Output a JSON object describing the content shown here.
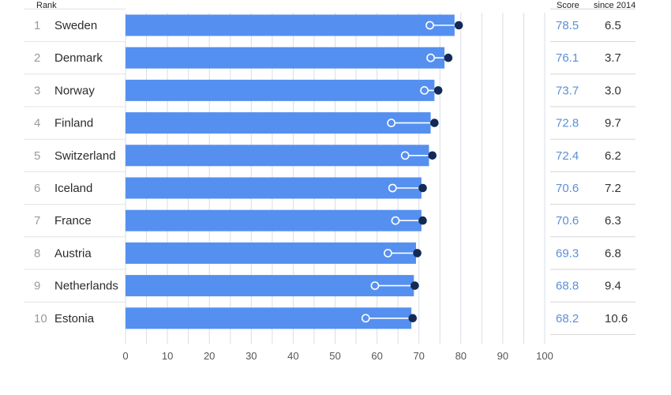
{
  "headers": {
    "rank": "Rank",
    "score": "Score",
    "since": "since 2014"
  },
  "colors": {
    "bar": "#5590f0",
    "dot_current": "#122a55",
    "dot_2014_fill": "#ffffff",
    "connector": "#ffffff",
    "grid": "#d7dde6",
    "score_text": "#5b8fd6"
  },
  "chart_data": {
    "type": "bar",
    "orientation": "horizontal",
    "title": "",
    "xlabel": "",
    "ylabel": "",
    "xlim": [
      0,
      100
    ],
    "x_ticks": [
      "0",
      "10",
      "20",
      "30",
      "40",
      "50",
      "60",
      "70",
      "80",
      "90",
      "100"
    ],
    "grid": true,
    "ranks": [
      "1",
      "2",
      "3",
      "4",
      "5",
      "6",
      "7",
      "8",
      "9",
      "10"
    ],
    "categories": [
      "Sweden",
      "Denmark",
      "Norway",
      "Finland",
      "Switzerland",
      "Iceland",
      "France",
      "Austria",
      "Netherlands",
      "Estonia"
    ],
    "values": [
      78.5,
      76.1,
      73.7,
      72.8,
      72.4,
      70.6,
      70.6,
      69.3,
      68.8,
      68.2
    ],
    "score_labels": [
      "78.5",
      "76.1",
      "73.7",
      "72.8",
      "72.4",
      "70.6",
      "70.6",
      "69.3",
      "68.8",
      "68.2"
    ],
    "since_2014_labels": [
      "6.5",
      "3.7",
      "3.0",
      "9.7",
      "6.2",
      "7.2",
      "6.3",
      "6.8",
      "9.4",
      "10.6"
    ],
    "markers_current": [
      79.5,
      77.0,
      74.6,
      73.7,
      73.2,
      70.9,
      70.9,
      69.6,
      69.0,
      68.5
    ],
    "markers_2014": [
      72.6,
      72.8,
      71.3,
      63.4,
      66.7,
      63.7,
      64.4,
      62.6,
      59.5,
      57.3
    ]
  }
}
